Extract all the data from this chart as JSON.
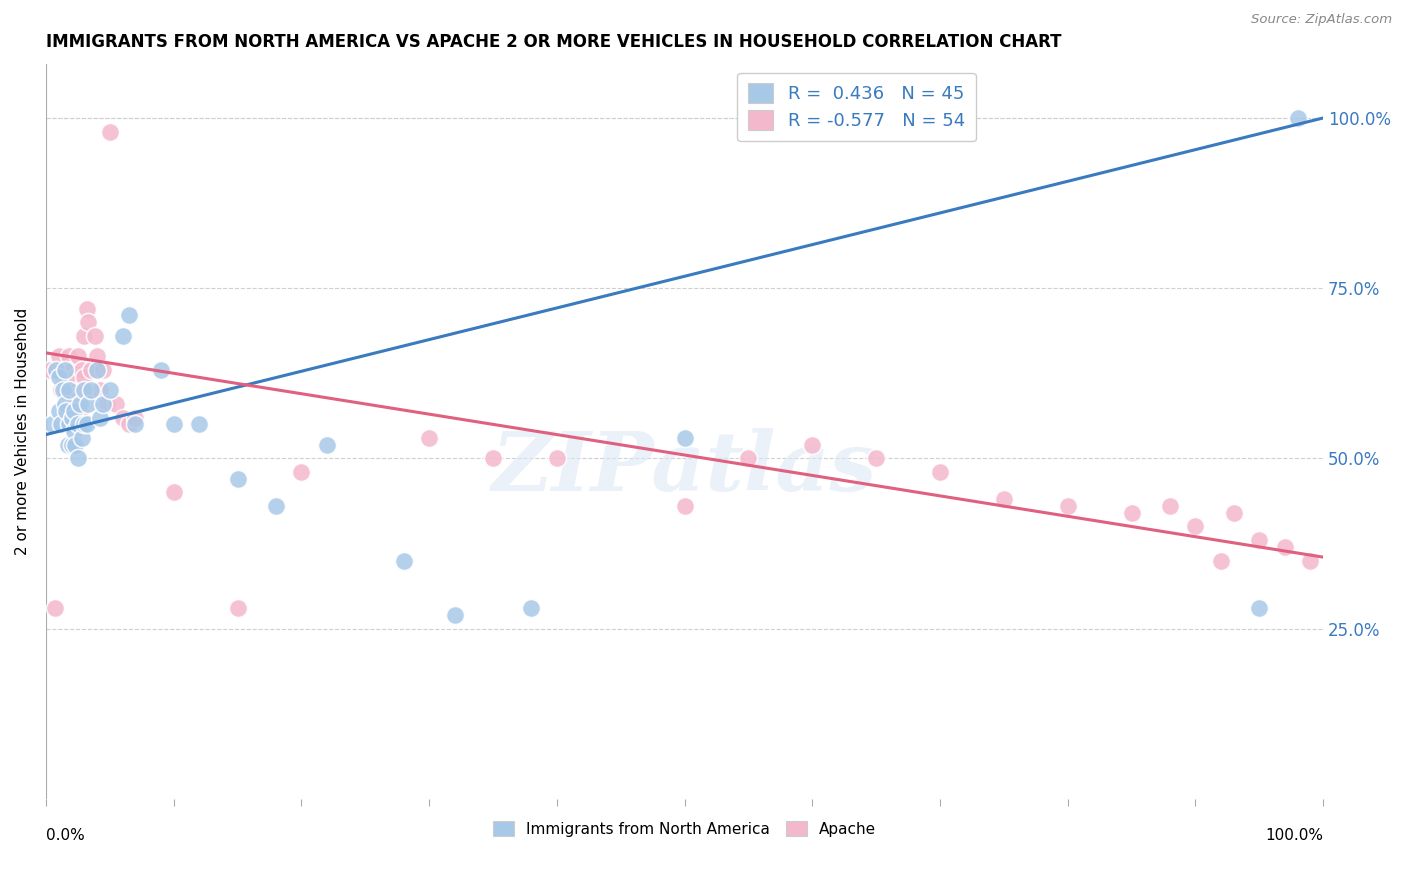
{
  "title": "IMMIGRANTS FROM NORTH AMERICA VS APACHE 2 OR MORE VEHICLES IN HOUSEHOLD CORRELATION CHART",
  "source": "Source: ZipAtlas.com",
  "ylabel": "2 or more Vehicles in Household",
  "legend_blue_label": "Immigrants from North America",
  "legend_pink_label": "Apache",
  "legend_blue_R": "R =  0.436",
  "legend_blue_N": "N = 45",
  "legend_pink_R": "R = -0.577",
  "legend_pink_N": "N = 54",
  "blue_color": "#a8c8e8",
  "pink_color": "#f4b8cc",
  "blue_line_color": "#3a7abf",
  "pink_line_color": "#e06080",
  "watermark": "ZIPatlas",
  "blue_scatter_x": [
    0.005,
    0.008,
    0.01,
    0.01,
    0.012,
    0.013,
    0.015,
    0.015,
    0.016,
    0.017,
    0.018,
    0.018,
    0.02,
    0.02,
    0.022,
    0.022,
    0.023,
    0.025,
    0.025,
    0.027,
    0.028,
    0.03,
    0.03,
    0.032,
    0.033,
    0.035,
    0.04,
    0.042,
    0.045,
    0.05,
    0.06,
    0.065,
    0.07,
    0.09,
    0.1,
    0.12,
    0.15,
    0.18,
    0.22,
    0.28,
    0.32,
    0.38,
    0.5,
    0.95,
    0.98
  ],
  "blue_scatter_y": [
    0.55,
    0.63,
    0.57,
    0.62,
    0.55,
    0.6,
    0.58,
    0.63,
    0.57,
    0.52,
    0.55,
    0.6,
    0.52,
    0.56,
    0.54,
    0.57,
    0.52,
    0.5,
    0.55,
    0.58,
    0.53,
    0.55,
    0.6,
    0.55,
    0.58,
    0.6,
    0.63,
    0.56,
    0.58,
    0.6,
    0.68,
    0.71,
    0.55,
    0.63,
    0.55,
    0.55,
    0.47,
    0.43,
    0.52,
    0.35,
    0.27,
    0.28,
    0.53,
    0.28,
    1.0
  ],
  "pink_scatter_x": [
    0.003,
    0.007,
    0.01,
    0.012,
    0.013,
    0.015,
    0.016,
    0.018,
    0.018,
    0.02,
    0.02,
    0.022,
    0.023,
    0.025,
    0.025,
    0.027,
    0.028,
    0.028,
    0.03,
    0.03,
    0.032,
    0.033,
    0.035,
    0.038,
    0.04,
    0.042,
    0.045,
    0.048,
    0.05,
    0.055,
    0.06,
    0.065,
    0.07,
    0.1,
    0.15,
    0.2,
    0.3,
    0.35,
    0.4,
    0.5,
    0.55,
    0.6,
    0.65,
    0.7,
    0.75,
    0.8,
    0.85,
    0.88,
    0.9,
    0.92,
    0.93,
    0.95,
    0.97,
    0.99
  ],
  "pink_scatter_y": [
    0.63,
    0.28,
    0.65,
    0.6,
    0.62,
    0.6,
    0.63,
    0.6,
    0.65,
    0.6,
    0.63,
    0.58,
    0.62,
    0.6,
    0.65,
    0.57,
    0.6,
    0.63,
    0.62,
    0.68,
    0.72,
    0.7,
    0.63,
    0.68,
    0.65,
    0.6,
    0.63,
    0.58,
    0.98,
    0.58,
    0.56,
    0.55,
    0.56,
    0.45,
    0.28,
    0.48,
    0.53,
    0.5,
    0.5,
    0.43,
    0.5,
    0.52,
    0.5,
    0.48,
    0.44,
    0.43,
    0.42,
    0.43,
    0.4,
    0.35,
    0.42,
    0.38,
    0.37,
    0.35
  ],
  "blue_line_y_start": 0.535,
  "blue_line_y_end": 1.0,
  "pink_line_y_start": 0.655,
  "pink_line_y_end": 0.355,
  "ytick_positions": [
    0.25,
    0.5,
    0.75,
    1.0
  ],
  "ytick_labels": [
    "25.0%",
    "50.0%",
    "75.0%",
    "100.0%"
  ],
  "xtick_positions": [
    0.0,
    0.1,
    0.2,
    0.3,
    0.4,
    0.5,
    0.6,
    0.7,
    0.8,
    0.9,
    1.0
  ],
  "grid_color": "#d0d0d0",
  "ymin": 0.0,
  "ymax": 1.08
}
